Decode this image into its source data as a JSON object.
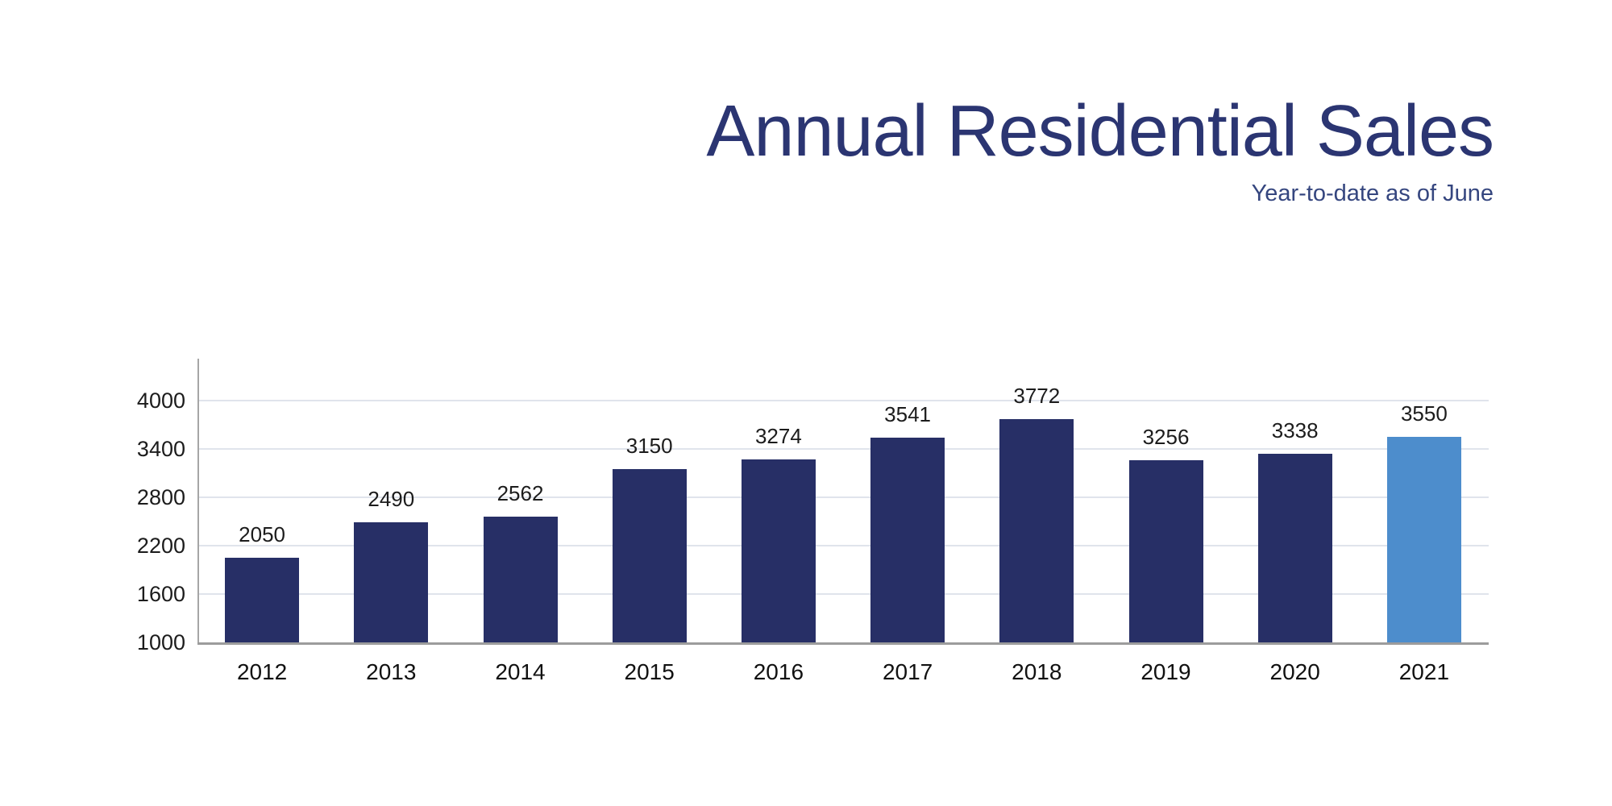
{
  "header": {
    "title": "Annual Residential Sales",
    "subtitle": "Year-to-date as of June",
    "title_color": "#2b3572",
    "subtitle_color": "#35467f"
  },
  "chart_data": {
    "type": "bar",
    "title": "Annual Residential Sales",
    "subtitle": "Year-to-date as of June",
    "categories": [
      "2012",
      "2013",
      "2014",
      "2015",
      "2016",
      "2017",
      "2018",
      "2019",
      "2020",
      "2021"
    ],
    "values": [
      2050,
      2490,
      2562,
      3150,
      3274,
      3541,
      3772,
      3256,
      3338,
      3550
    ],
    "xlabel": "",
    "ylabel": "",
    "ylim": [
      1000,
      4300
    ],
    "yticks": [
      1000,
      1600,
      2200,
      2800,
      3400,
      4000
    ],
    "grid": true,
    "legend_position": "none",
    "highlight_index": 9,
    "colors": {
      "bar": "#272f66",
      "highlight": "#4d8dcc",
      "gridline": "#e0e4ec",
      "y_axis_line": "#a6a6a6",
      "baseline": "#9c9c9c",
      "tick_text": "#1c1c1c",
      "value_text": "#1c1c1c",
      "category_text": "#111111"
    }
  }
}
